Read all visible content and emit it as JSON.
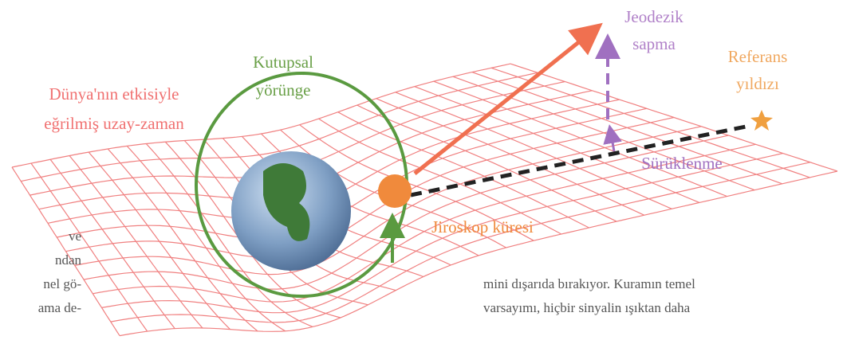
{
  "labels": {
    "spacetime": [
      "Dünya'nın etkisiyle",
      "eğrilmiş uzay-zaman"
    ],
    "orbit": [
      "Kutupsal",
      "yörünge"
    ],
    "geodetic": [
      "Jeodezik",
      "sapma"
    ],
    "reference": [
      "Referans",
      "yıldızı"
    ],
    "drag": "Sürüklenme",
    "gyroscope": "Jiroskop küresi"
  },
  "body_left": [
    "ve",
    "ndan",
    "nel gö-",
    "ama de-"
  ],
  "body_right": [
    "mini dışarıda bırakıyor. Kuramın temel",
    "varsayımı, hiçbir sinyalin ışıktan daha"
  ]
}
